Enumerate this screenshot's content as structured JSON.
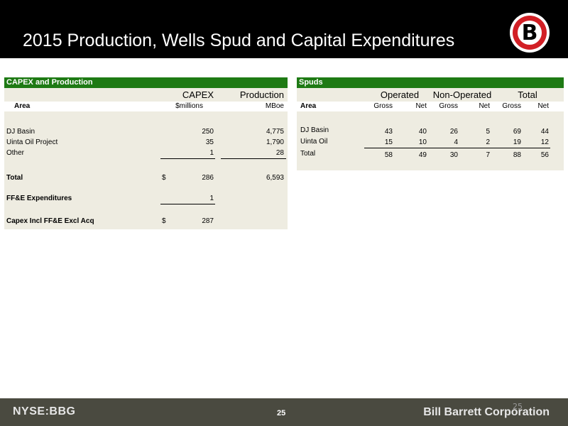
{
  "title": "2015 Production, Wells Spud and Capital Expenditures",
  "capex": {
    "header": "CAPEX and Production",
    "col_group_capex": "CAPEX",
    "col_group_production": "Production",
    "col_area": "Area",
    "col_capex_unit": "$millions",
    "col_production_unit": "MBoe",
    "rows": [
      {
        "area": "DJ Basin",
        "capex": "250",
        "production": "4,775"
      },
      {
        "area": "Uinta Oil Project",
        "capex": "35",
        "production": "1,790"
      },
      {
        "area": "Other",
        "capex": "1",
        "production": "28"
      }
    ],
    "total": {
      "label": "Total",
      "currency": "$",
      "capex": "286",
      "production": "6,593"
    },
    "ffe": {
      "label": "FF&E Expenditures",
      "value": "1"
    },
    "capex_incl": {
      "label": "Capex Incl FF&E Excl Acq",
      "currency": "$",
      "value": "287"
    }
  },
  "spuds": {
    "header": "Spuds",
    "groups": [
      "Operated",
      "Non-Operated",
      "Total"
    ],
    "col_area": "Area",
    "sub_cols": [
      "Gross",
      "Net",
      "Gross",
      "Net",
      "Gross",
      "Net"
    ],
    "rows": [
      {
        "area": "DJ Basin",
        "values": [
          "43",
          "40",
          "26",
          "5",
          "69",
          "44"
        ]
      },
      {
        "area": "Uinta Oil",
        "values": [
          "15",
          "10",
          "4",
          "2",
          "19",
          "12"
        ]
      },
      {
        "area": "Total",
        "values": [
          "58",
          "49",
          "30",
          "7",
          "88",
          "56"
        ]
      }
    ]
  },
  "footer": {
    "ticker": "NYSE:BBG",
    "page": "25",
    "company": "Bill Barrett Corporation",
    "page_ghost": "25"
  },
  "logo": {
    "letter": "B"
  },
  "colors": {
    "header_green": "#1e7a14",
    "panel_bg": "#eeece1",
    "logo_red": "#d21f25"
  }
}
